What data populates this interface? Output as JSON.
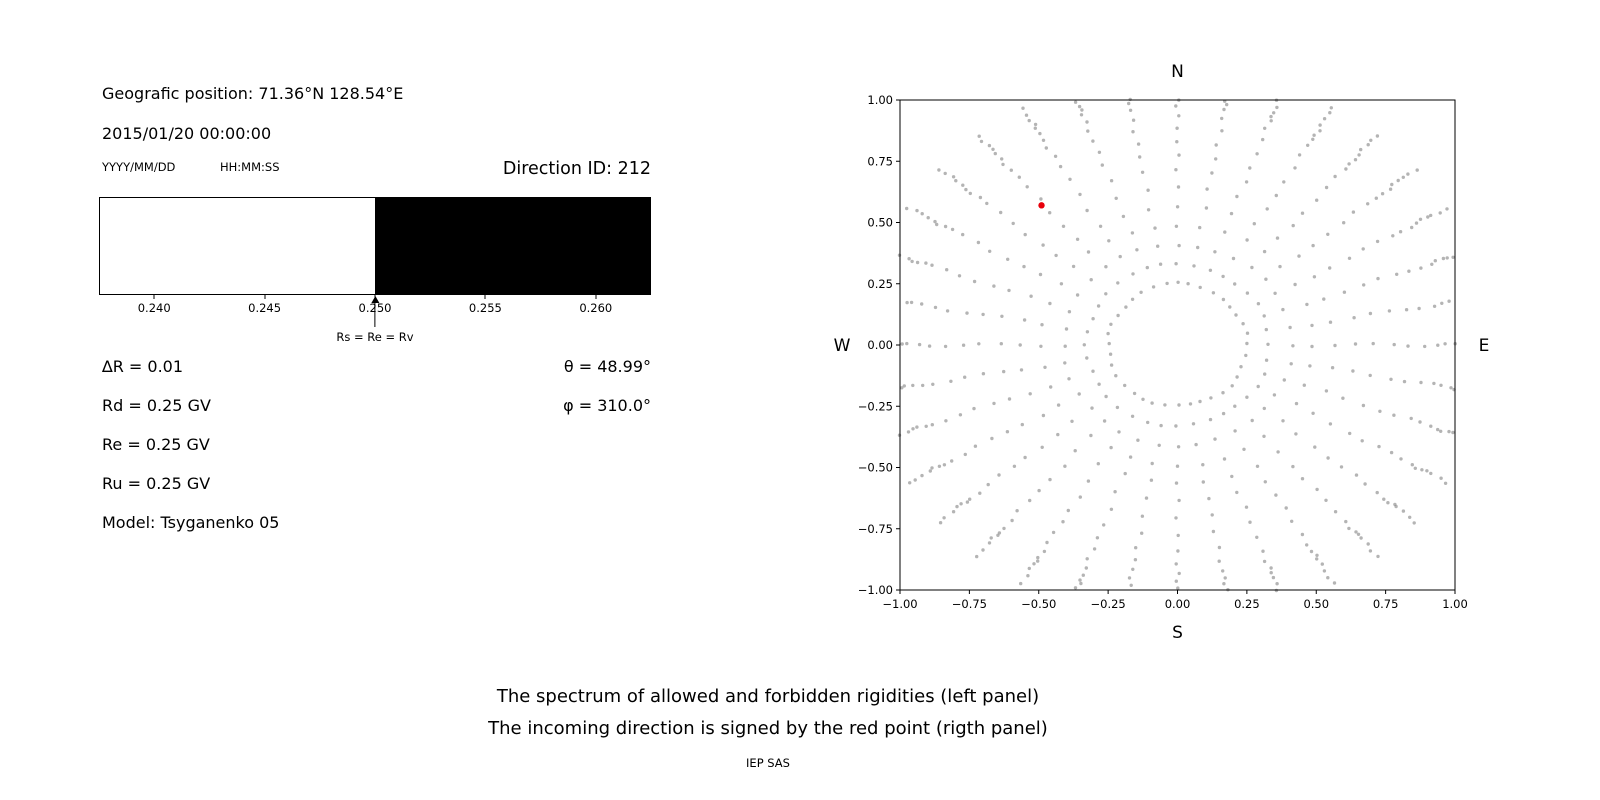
{
  "info": {
    "geo_position": "Geografic position: 71.36°N 128.54°E",
    "datetime": "2015/01/20 00:00:00",
    "date_format": "YYYY/MM/DD",
    "time_format": "HH:MM:SS",
    "direction_id": "Direction ID: 212",
    "delta_r": "∆R = 0.01",
    "theta": "θ = 48.99°",
    "rd": "Rd = 0.25 GV",
    "phi": "φ = 310.0°",
    "re": "Re = 0.25 GV",
    "ru": "Ru = 0.25 GV",
    "model": "Model: Tsyganenko 05"
  },
  "captions": {
    "line1": "The spectrum of allowed and forbidden rigidities (left panel)",
    "line2": "The incoming direction is signed by the red point (rigth panel)",
    "credit": "IEP SAS"
  },
  "chart_data": [
    {
      "type": "area",
      "panel": "left-spectrum",
      "xlim": [
        0.2375,
        0.2625
      ],
      "xticks": [
        {
          "v": 0.24,
          "label": "0.240"
        },
        {
          "v": 0.245,
          "label": "0.245"
        },
        {
          "v": 0.25,
          "label": "0.250"
        },
        {
          "v": 0.255,
          "label": "0.255"
        },
        {
          "v": 0.26,
          "label": "0.260"
        }
      ],
      "regions": [
        {
          "label": "allowed",
          "from": 0.2375,
          "to": 0.25,
          "color": "#ffffff"
        },
        {
          "label": "forbidden",
          "from": 0.25,
          "to": 0.2625,
          "color": "#000000"
        }
      ],
      "annotation": {
        "x": 0.25,
        "label": "Rs = Re = Rv"
      }
    },
    {
      "type": "scatter",
      "panel": "right-direction-map",
      "xlim": [
        -1.0,
        1.0
      ],
      "ylim": [
        -1.0,
        1.0
      ],
      "xticks": [
        {
          "v": -1.0,
          "label": "−1.00"
        },
        {
          "v": -0.75,
          "label": "−0.75"
        },
        {
          "v": -0.5,
          "label": "−0.50"
        },
        {
          "v": -0.25,
          "label": "−0.25"
        },
        {
          "v": 0.0,
          "label": "0.00"
        },
        {
          "v": 0.25,
          "label": "0.25"
        },
        {
          "v": 0.5,
          "label": "0.50"
        },
        {
          "v": 0.75,
          "label": "0.75"
        },
        {
          "v": 1.0,
          "label": "1.00"
        }
      ],
      "yticks": [
        {
          "v": -1.0,
          "label": "−1.00"
        },
        {
          "v": -0.75,
          "label": "−0.75"
        },
        {
          "v": -0.5,
          "label": "−0.50"
        },
        {
          "v": -0.25,
          "label": "−0.25"
        },
        {
          "v": 0.0,
          "label": "0.00"
        },
        {
          "v": 0.25,
          "label": "0.25"
        },
        {
          "v": 0.5,
          "label": "0.50"
        },
        {
          "v": 0.75,
          "label": "0.75"
        },
        {
          "v": 1.0,
          "label": "1.00"
        }
      ],
      "compass": {
        "top": "N",
        "bottom": "S",
        "left": "W",
        "right": "E"
      },
      "grid_pattern": {
        "azimuth_count": 36,
        "zenith_radii": [
          0.25,
          0.33,
          0.41,
          0.49,
          0.565,
          0.64,
          0.71,
          0.775,
          0.835,
          0.89,
          0.935,
          0.97,
          0.995,
          1.015,
          1.035,
          1.06,
          1.09,
          1.12
        ],
        "dot_color": "#8c8c8c",
        "dot_opacity": 0.65
      },
      "red_point": {
        "x": -0.49,
        "y": 0.57,
        "color": "#e8000b"
      }
    }
  ]
}
